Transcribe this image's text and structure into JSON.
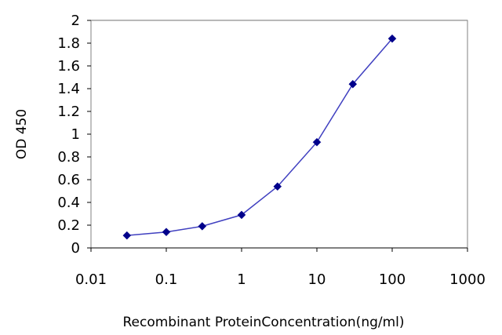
{
  "chart_data": {
    "type": "line",
    "xlabel": "Recombinant  ProteinConcentration(ng/ml)",
    "ylabel": "OD 450",
    "x_scale": "log",
    "xlim": [
      0.01,
      1000
    ],
    "ylim": [
      0,
      2
    ],
    "x_ticks": [
      "0.01",
      "0.1",
      "1",
      "10",
      "100",
      "1000"
    ],
    "y_ticks": [
      "0",
      "0.2",
      "0.4",
      "0.6",
      "0.8",
      "1",
      "1.2",
      "1.4",
      "1.6",
      "1.8",
      "2"
    ],
    "grid": "horizontal",
    "series": [
      {
        "x": [
          0.03,
          0.1,
          0.3,
          1,
          3,
          10,
          30,
          100
        ],
        "y": [
          0.11,
          0.14,
          0.19,
          0.29,
          0.54,
          0.93,
          1.44,
          1.84
        ],
        "color": "#00008b",
        "marker": "diamond"
      }
    ],
    "plot_background": "#ffffff",
    "grid_color": "#808080"
  }
}
